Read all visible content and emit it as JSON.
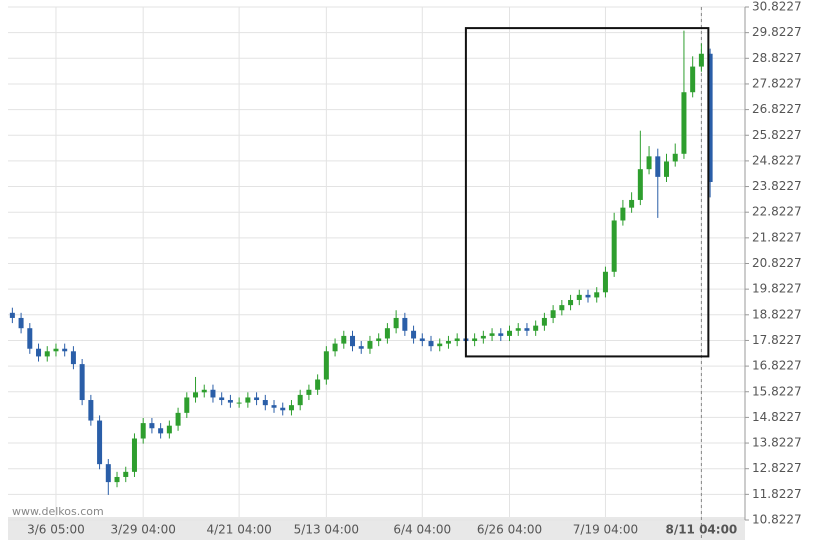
{
  "chart_data": {
    "type": "candlestick",
    "watermark": "www.delkos.com",
    "up_color": "#2e9e2e",
    "down_color": "#2a5ea8",
    "xlim": [
      -0.5,
      84
    ],
    "xticks": [
      {
        "value": 5,
        "label": "3/6 05:00"
      },
      {
        "value": 15,
        "label": "3/29 04:00"
      },
      {
        "value": 26,
        "label": "4/21 04:00"
      },
      {
        "value": 36,
        "label": "5/13 04:00"
      },
      {
        "value": 47,
        "label": "6/4 04:00"
      },
      {
        "value": 57,
        "label": "6/26 04:00"
      },
      {
        "value": 68,
        "label": "7/19 04:00"
      },
      {
        "value": 79,
        "label": "8/11 04:00"
      }
    ],
    "ylim": [
      10.8227,
      30.8227
    ],
    "yticks": [
      10.8227,
      11.8227,
      12.8227,
      13.8227,
      14.8227,
      15.8227,
      16.8227,
      17.8227,
      18.8227,
      19.8227,
      20.8227,
      21.8227,
      22.8227,
      23.8227,
      24.8227,
      25.8227,
      26.8227,
      27.8227,
      28.8227,
      29.8227,
      30.8227
    ],
    "grid": true,
    "box": {
      "x": [
        52,
        79.8
      ],
      "y": [
        17.2,
        30.0
      ]
    },
    "open": [
      18.9,
      18.7,
      18.3,
      17.5,
      17.2,
      17.4,
      17.5,
      17.4,
      16.9,
      15.5,
      14.7,
      13.0,
      12.3,
      12.5,
      12.7,
      14.0,
      14.6,
      14.4,
      14.2,
      14.5,
      15.0,
      15.6,
      15.8,
      15.9,
      15.6,
      15.5,
      15.4,
      15.4,
      15.6,
      15.5,
      15.3,
      15.2,
      15.1,
      15.3,
      15.7,
      15.9,
      16.3,
      17.4,
      17.7,
      18.0,
      17.6,
      17.5,
      17.8,
      17.9,
      18.3,
      18.7,
      18.2,
      17.9,
      17.8,
      17.6,
      17.7,
      17.8,
      17.9,
      17.8,
      17.9,
      18.0,
      18.1,
      18.0,
      18.2,
      18.3,
      18.2,
      18.4,
      18.7,
      19.0,
      19.2,
      19.4,
      19.6,
      19.5,
      19.7,
      20.5,
      22.5,
      23.0,
      23.3,
      24.5,
      25.0,
      24.2,
      24.8,
      25.1,
      27.5,
      28.5,
      29.0
    ],
    "high": [
      19.1,
      18.9,
      18.5,
      17.7,
      17.6,
      17.7,
      17.7,
      17.6,
      17.1,
      15.7,
      14.9,
      13.2,
      12.7,
      12.9,
      14.2,
      14.8,
      14.8,
      14.6,
      14.7,
      15.2,
      15.8,
      16.4,
      16.1,
      16.1,
      15.8,
      15.7,
      15.6,
      15.8,
      15.8,
      15.7,
      15.5,
      15.4,
      15.5,
      15.9,
      16.1,
      16.5,
      17.6,
      17.9,
      18.2,
      18.2,
      17.8,
      18.0,
      18.1,
      18.5,
      19.0,
      18.9,
      18.4,
      18.1,
      18.0,
      17.9,
      18.0,
      18.1,
      18.1,
      18.1,
      18.2,
      18.3,
      18.3,
      18.4,
      18.5,
      18.5,
      18.6,
      18.9,
      19.2,
      19.4,
      19.6,
      19.8,
      19.8,
      19.9,
      20.7,
      22.8,
      23.3,
      23.6,
      26.0,
      25.4,
      25.3,
      25.1,
      25.5,
      29.9,
      28.9,
      29.4,
      29.2
    ],
    "low": [
      18.5,
      18.1,
      17.3,
      17.0,
      17.0,
      17.2,
      17.2,
      16.7,
      15.3,
      14.5,
      12.8,
      11.8,
      12.1,
      12.3,
      12.5,
      13.8,
      14.2,
      14.0,
      14.0,
      14.3,
      14.8,
      15.4,
      15.6,
      15.4,
      15.3,
      15.2,
      15.2,
      15.2,
      15.3,
      15.1,
      15.0,
      14.9,
      14.9,
      15.1,
      15.5,
      15.7,
      16.1,
      17.2,
      17.5,
      17.4,
      17.3,
      17.3,
      17.6,
      17.7,
      18.1,
      18.0,
      17.7,
      17.6,
      17.4,
      17.4,
      17.5,
      17.6,
      17.6,
      17.6,
      17.7,
      17.8,
      17.8,
      17.8,
      18.0,
      18.0,
      18.0,
      18.2,
      18.5,
      18.8,
      19.0,
      19.2,
      19.3,
      19.3,
      19.5,
      20.3,
      22.3,
      22.8,
      23.1,
      24.3,
      22.6,
      24.0,
      24.6,
      24.9,
      27.3,
      28.3,
      23.4
    ],
    "close": [
      18.7,
      18.3,
      17.5,
      17.2,
      17.4,
      17.5,
      17.4,
      16.9,
      15.5,
      14.7,
      13.0,
      12.3,
      12.5,
      12.7,
      14.0,
      14.6,
      14.4,
      14.2,
      14.5,
      15.0,
      15.6,
      15.8,
      15.9,
      15.6,
      15.5,
      15.4,
      15.4,
      15.6,
      15.5,
      15.3,
      15.2,
      15.1,
      15.3,
      15.7,
      15.9,
      16.3,
      17.4,
      17.7,
      18.0,
      17.6,
      17.5,
      17.8,
      17.9,
      18.3,
      18.7,
      18.2,
      17.9,
      17.8,
      17.6,
      17.7,
      17.8,
      17.9,
      17.8,
      17.9,
      18.0,
      18.1,
      18.0,
      18.2,
      18.3,
      18.2,
      18.4,
      18.7,
      19.0,
      19.2,
      19.4,
      19.6,
      19.5,
      19.7,
      20.5,
      22.5,
      23.0,
      23.3,
      24.5,
      25.0,
      24.2,
      24.8,
      25.1,
      27.5,
      28.5,
      29.0,
      24.0
    ]
  }
}
